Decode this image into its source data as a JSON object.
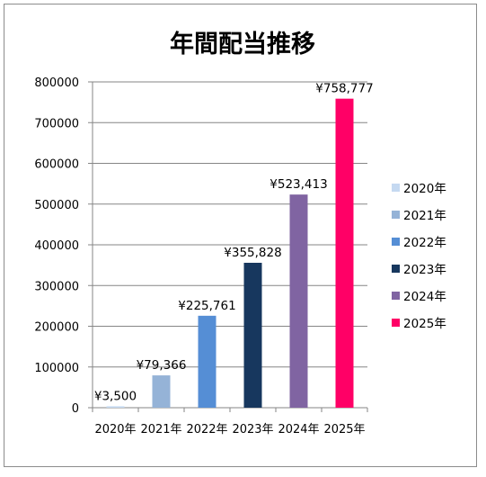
{
  "chart_data": {
    "type": "bar",
    "title": "年間配当推移",
    "categories": [
      "2020年",
      "2021年",
      "2022年",
      "2023年",
      "2024年",
      "2025年"
    ],
    "values": [
      3500,
      79366,
      225761,
      355828,
      523413,
      758777
    ],
    "data_labels": [
      "¥3,500",
      "¥79,366",
      "¥225,761",
      "¥355,828",
      "¥523,413",
      "¥758,777"
    ],
    "colors": [
      "#c5d9f1",
      "#95b3d7",
      "#558ed5",
      "#17375e",
      "#8064a2",
      "#ff0066"
    ],
    "ylim": [
      0,
      800000
    ],
    "yticks": [
      "0",
      "100000",
      "200000",
      "300000",
      "400000",
      "500000",
      "600000",
      "700000",
      "800000"
    ],
    "ytick_values": [
      0,
      100000,
      200000,
      300000,
      400000,
      500000,
      600000,
      700000,
      800000
    ],
    "grid": true,
    "legend_position": "right",
    "legend": [
      "2020年",
      "2021年",
      "2022年",
      "2023年",
      "2024年",
      "2025年"
    ],
    "xlabel": "",
    "ylabel": ""
  }
}
